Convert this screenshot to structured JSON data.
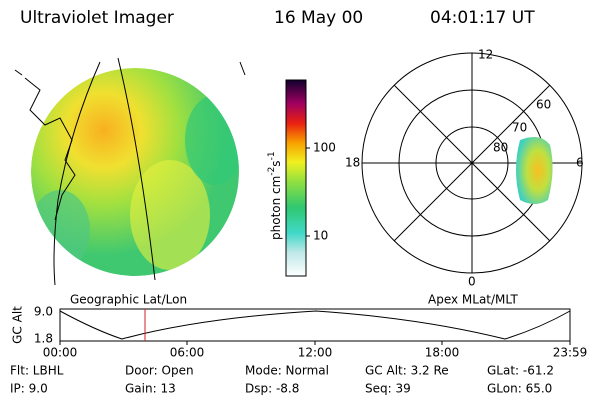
{
  "header": {
    "instrument": "Ultraviolet Imager",
    "date": "16 May 00",
    "time": "04:01:17 UT"
  },
  "colorbar": {
    "ticks": [
      "100",
      "10"
    ],
    "unit": {
      "base": "photon cm",
      "exp1": "-2",
      "mid": "s",
      "exp2": "-1"
    }
  },
  "geo_panel": {
    "label": "Geographic Lat/Lon"
  },
  "polar_panel": {
    "label": "Apex MLat/MLT",
    "mlt": [
      "12",
      "18",
      "6",
      "0"
    ],
    "mlat": [
      "60",
      "70",
      "80"
    ]
  },
  "timeline": {
    "axis_label": "GC Alt",
    "range": [
      "9.0",
      "1.8"
    ],
    "times": [
      "00:00",
      "06:00",
      "12:00",
      "18:00",
      "23:59"
    ]
  },
  "footer": {
    "rows": [
      [
        "Flt: LBHL",
        "Door: Open",
        "Mode: Normal",
        "GC Alt: 3.2 Re",
        "GLat: -61.2"
      ],
      [
        "IP:  9.0",
        "Gain: 13",
        "Dsp:   -8.8",
        "Seq: 39",
        "GLon: 65.0"
      ]
    ]
  }
}
